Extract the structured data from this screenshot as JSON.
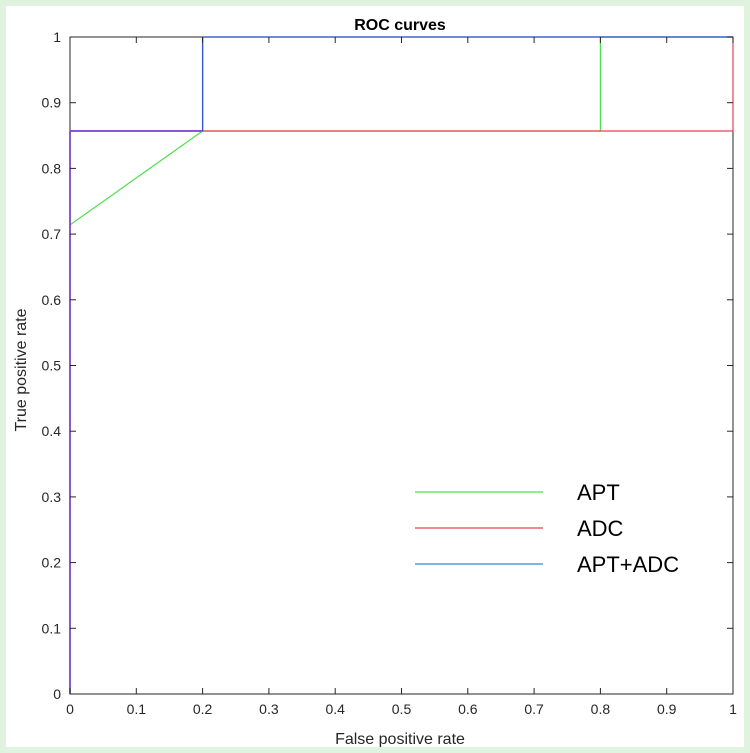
{
  "chart_data": {
    "type": "line",
    "title": "ROC curves",
    "xlabel": "False positive rate",
    "ylabel": "True positive rate",
    "xlim": [
      0,
      1
    ],
    "ylim": [
      0,
      1
    ],
    "xticks": [
      "0",
      "0.1",
      "0.2",
      "0.3",
      "0.4",
      "0.5",
      "0.6",
      "0.7",
      "0.8",
      "0.9",
      "1"
    ],
    "yticks": [
      "0",
      "0.1",
      "0.2",
      "0.3",
      "0.4",
      "0.5",
      "0.6",
      "0.7",
      "0.8",
      "0.9",
      "1"
    ],
    "grid": false,
    "legend_position": "bottom-right",
    "series": [
      {
        "name": "APT",
        "color": "#4ee04e",
        "x": [
          0,
          0,
          0.2,
          0.8,
          0.8,
          1
        ],
        "y": [
          0,
          0.714,
          0.857,
          0.857,
          1,
          1
        ]
      },
      {
        "name": "ADC",
        "color": "#e8414f",
        "x": [
          0,
          0,
          1,
          1
        ],
        "y": [
          0,
          0.857,
          0.857,
          1
        ]
      },
      {
        "name": "APT+ADC",
        "color": "#2c8fd0",
        "x": [
          0,
          0,
          0.2,
          0.2,
          1
        ],
        "y": [
          0,
          0.857,
          0.857,
          1,
          1
        ]
      }
    ],
    "overlay_color": "#7a3fd0"
  }
}
